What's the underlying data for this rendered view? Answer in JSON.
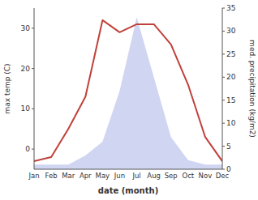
{
  "chart_data": {
    "type": "line",
    "categories": [
      "Jan",
      "Feb",
      "Mar",
      "Apr",
      "May",
      "Jun",
      "Jul",
      "Aug",
      "Sep",
      "Oct",
      "Nov",
      "Dec"
    ],
    "xlabel": "date (month)",
    "ylabel": "max temp (C)",
    "y2label": "med. precipitation (kg/m2)",
    "series": [
      {
        "type": "area",
        "axis": "y2",
        "color": "#aab4e8",
        "values": [
          1,
          1,
          1,
          3,
          6,
          17,
          33,
          20,
          7,
          2,
          1,
          1
        ]
      },
      {
        "type": "line",
        "color": "#c0413a",
        "values": [
          -3,
          -2,
          5,
          13,
          32,
          29,
          31,
          31,
          26,
          16,
          3,
          -3
        ]
      }
    ],
    "ylim": [
      -5,
      35
    ],
    "yticks": [
      0,
      10,
      20,
      30
    ],
    "y2lim": [
      0,
      35
    ],
    "y2ticks": [
      0,
      5,
      10,
      15,
      20,
      25,
      30,
      35
    ],
    "grid": false
  }
}
